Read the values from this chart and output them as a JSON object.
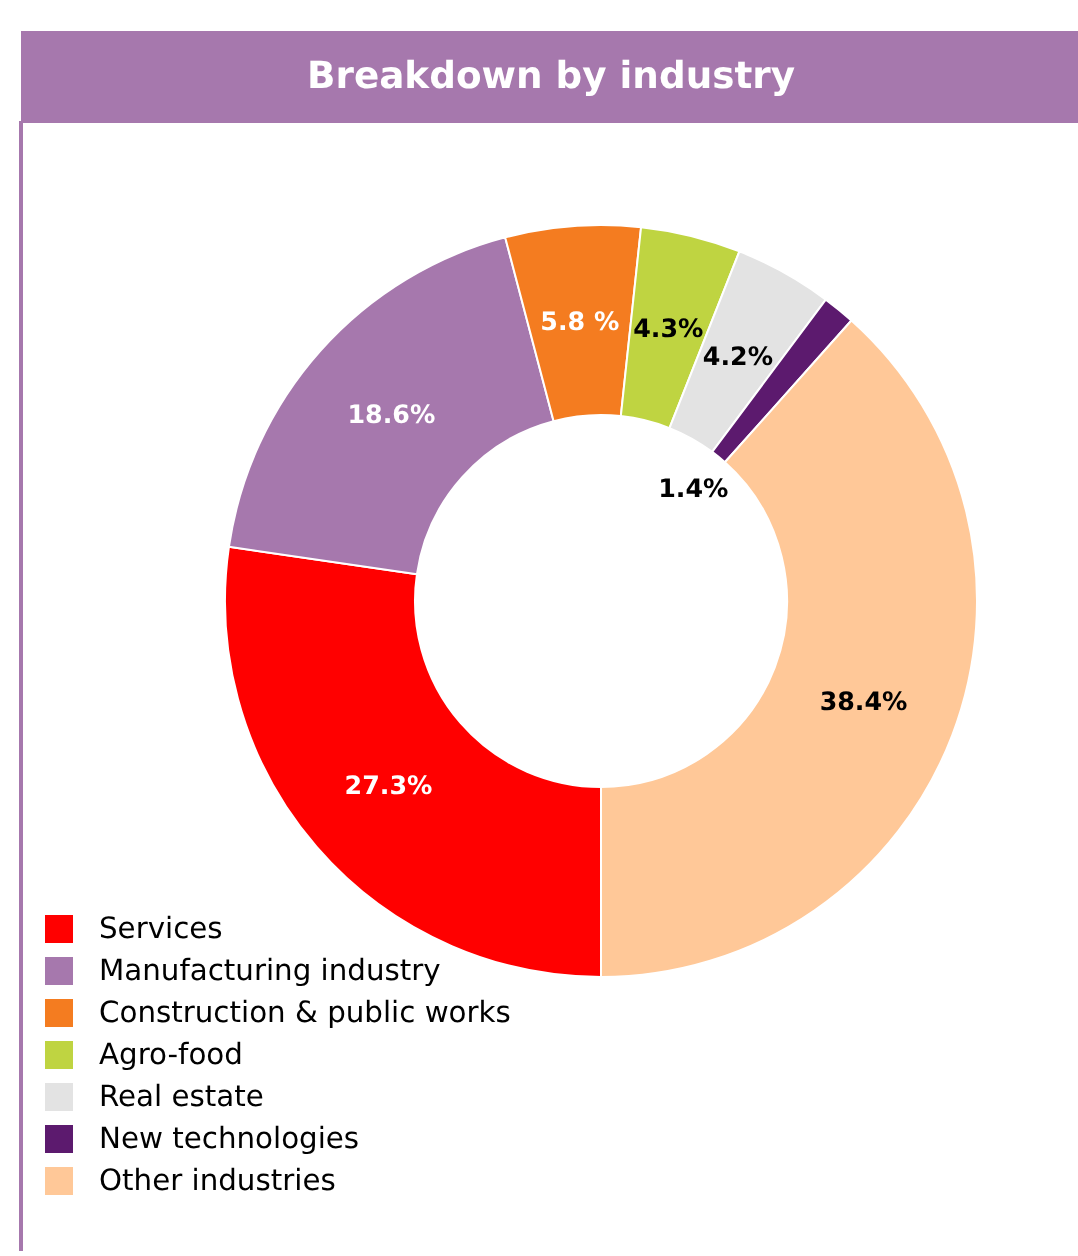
{
  "chart_data": {
    "type": "donut",
    "title": "Breakdown by industry",
    "categories": [
      "Services",
      "Manufacturing industry",
      "Construction & public works",
      "Agro-food",
      "Real estate",
      "New technologies",
      "Other industries"
    ],
    "values": [
      27.3,
      18.6,
      5.8,
      4.3,
      4.2,
      1.4,
      38.4
    ],
    "colors": [
      "#ff0000",
      "#a678ad",
      "#f47c20",
      "#bfd441",
      "#e3e3e3",
      "#5c1a6e",
      "#ffc898"
    ],
    "value_labels": [
      "27.3%",
      "18.6%",
      "5.8 %",
      "4.3%",
      "4.2%",
      "1.4%",
      "38.4%"
    ],
    "legend": "bottom left"
  }
}
